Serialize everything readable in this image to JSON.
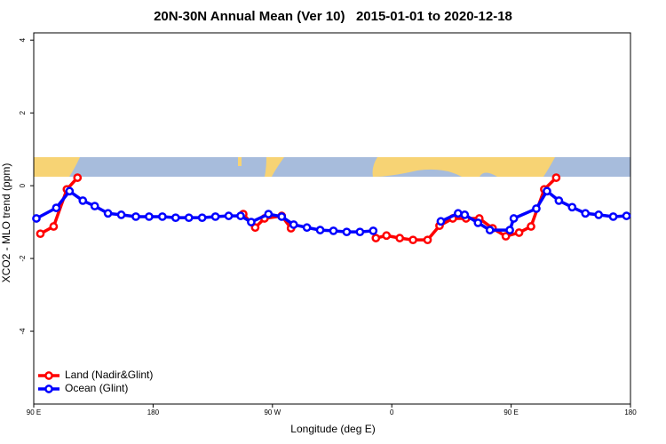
{
  "chart_data": {
    "type": "line",
    "title": "20N-30N Annual Mean (Ver 10)   2015-01-01 to 2020-12-18",
    "x_label": "Longitude (deg E)",
    "y_label": "XCO2 - MLO trend (ppm)",
    "xlim": [
      90,
      540
    ],
    "ylim": [
      -6,
      4.2
    ],
    "xticks": [
      {
        "value": 90,
        "label": "90 E"
      },
      180,
      {
        "value": 270,
        "label": "90 W"
      },
      {
        "value": 360,
        "label": "0"
      },
      {
        "value": 450,
        "label": "90 E"
      },
      {
        "value": 540,
        "label": "180"
      }
    ],
    "yticks": [
      -4,
      -2,
      0,
      2,
      4
    ],
    "legend": "bottom-left",
    "series": [
      {
        "name": "Land (Nadir&Glint)",
        "color": "#ff0000",
        "x": [
          95,
          105,
          115,
          123,
          185,
          248,
          257,
          264,
          277,
          284,
          316,
          348,
          356,
          366,
          376,
          387,
          396,
          406,
          416,
          426,
          436,
          446,
          456,
          465,
          475,
          484
        ],
        "values": [
          -1.32,
          -1.12,
          -0.1,
          0.22,
          null,
          -0.78,
          -1.15,
          -0.9,
          -0.83,
          -1.17,
          null,
          -1.44,
          -1.37,
          -1.44,
          -1.49,
          -1.49,
          -1.1,
          -0.9,
          -0.9,
          -0.9,
          -1.17,
          -1.39,
          -1.29,
          -1.12,
          -0.1,
          0.22
        ]
      },
      {
        "name": "Ocean (Glint)",
        "color": "#0000ff",
        "x": [
          92,
          107,
          117,
          127,
          136,
          146,
          156,
          167,
          177,
          187,
          197,
          207,
          217,
          227,
          237,
          246,
          254,
          267,
          277,
          286,
          296,
          306,
          316,
          326,
          336,
          346,
          370,
          397,
          410,
          415,
          425,
          434,
          449,
          452,
          469,
          477,
          486,
          496,
          506,
          516,
          527,
          537
        ],
        "values": [
          -0.9,
          -0.61,
          -0.15,
          -0.41,
          -0.56,
          -0.76,
          -0.8,
          -0.85,
          -0.85,
          -0.85,
          -0.88,
          -0.88,
          -0.88,
          -0.85,
          -0.83,
          -0.83,
          -1.0,
          -0.78,
          -0.85,
          -1.07,
          -1.15,
          -1.22,
          -1.24,
          -1.27,
          -1.27,
          -1.24,
          null,
          -0.98,
          -0.76,
          -0.8,
          -1.02,
          -1.22,
          -1.22,
          -0.9,
          -0.63,
          -0.15,
          -0.41,
          -0.59,
          -0.76,
          -0.8,
          -0.85,
          -0.83
        ]
      }
    ]
  }
}
